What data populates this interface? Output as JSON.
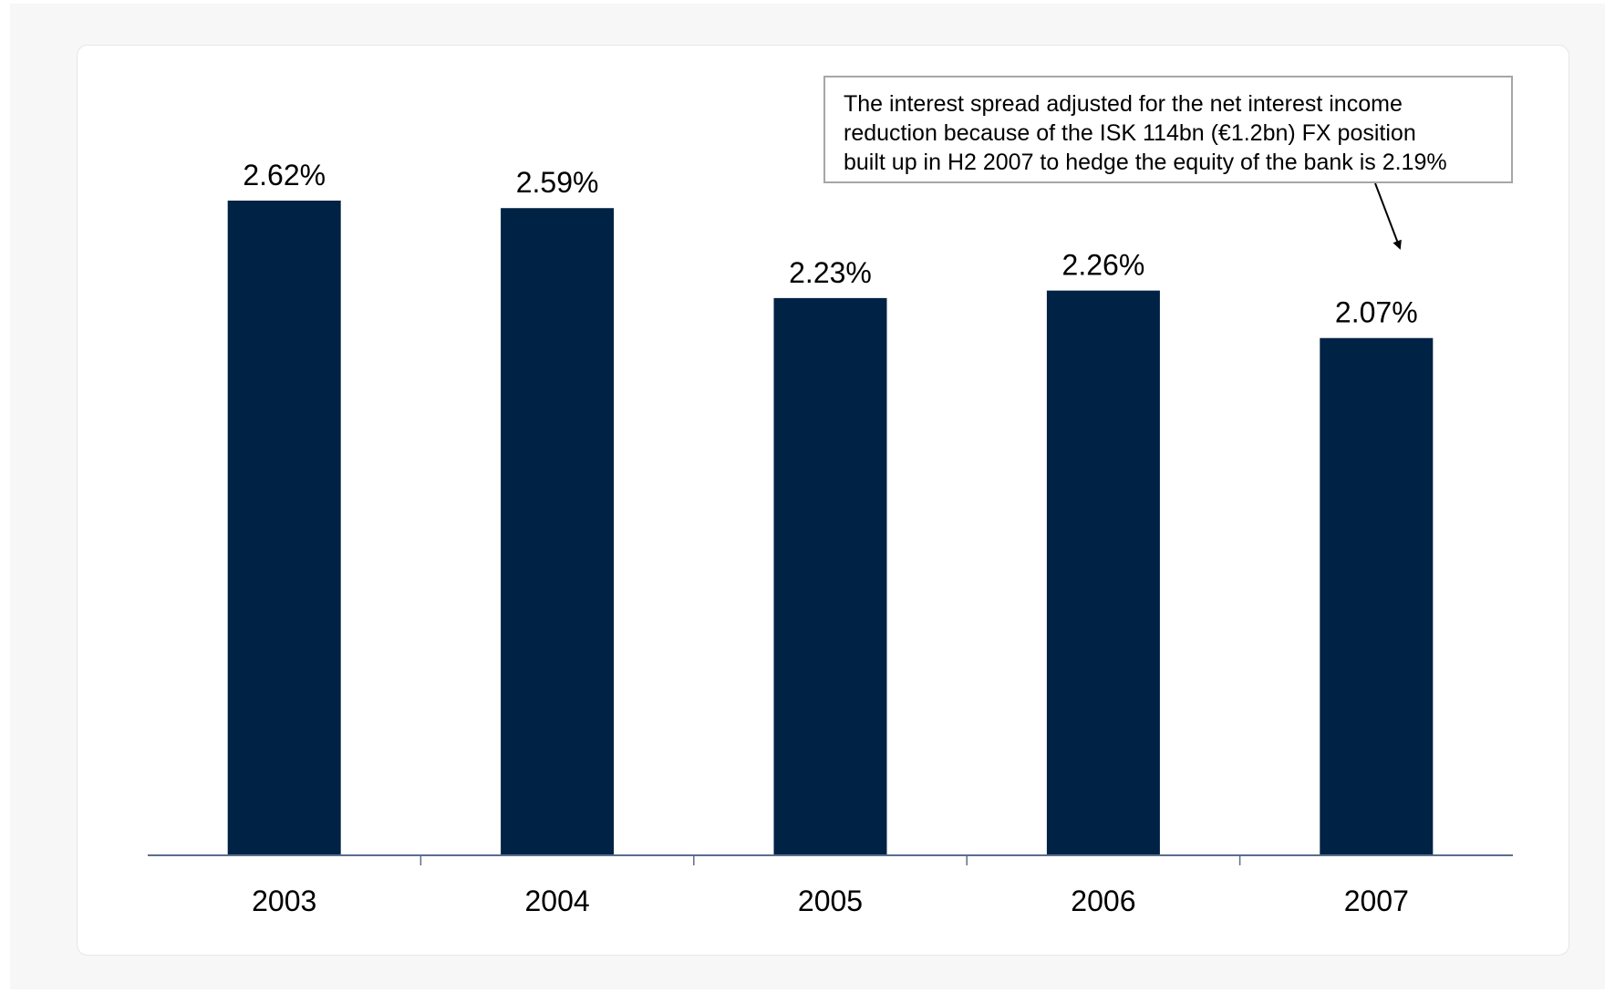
{
  "chart_data": {
    "type": "bar",
    "title": "",
    "xlabel": "",
    "ylabel": "",
    "categories": [
      "2003",
      "2004",
      "2005",
      "2006",
      "2007"
    ],
    "values": [
      2.62,
      2.59,
      2.23,
      2.26,
      2.07
    ],
    "value_labels": [
      "2.62%",
      "2.59%",
      "2.23%",
      "2.26%",
      "2.07%"
    ],
    "ylim": [
      0,
      2.62
    ],
    "grid": false,
    "bar_color": "#002244",
    "axis_color": "#5a6e8c",
    "annotation": {
      "lines": [
        "The interest spread adjusted for the net interest income",
        "reduction because of the ISK 114bn (€1.2bn) FX position",
        "built up in H2 2007 to hedge the equity of the bank is 2.19%"
      ],
      "points_to": "2007"
    }
  }
}
